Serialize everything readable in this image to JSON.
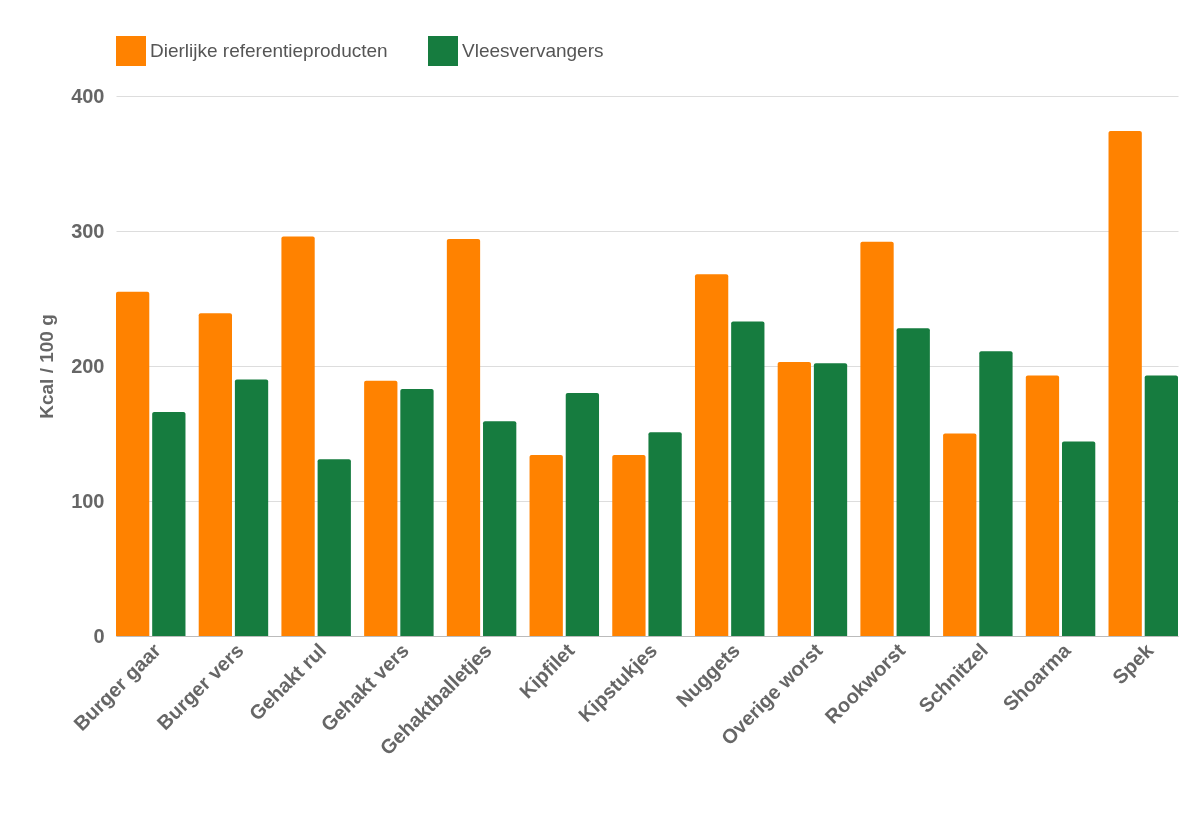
{
  "chart_data": {
    "type": "bar",
    "ylabel": "Kcal / 100 g",
    "categories": [
      "Burger gaar",
      "Burger vers",
      "Gehakt rul",
      "Gehakt vers",
      "Gehaktballetjes",
      "Kipfilet",
      "Kipstukjes",
      "Nuggets",
      "Overige worst",
      "Rookworst",
      "Schnitzel",
      "Shoarma",
      "Spek"
    ],
    "series": [
      {
        "name": "Dierlijke referentieproducten",
        "color": "#ff8200",
        "values": [
          255,
          239,
          296,
          189,
          294,
          134,
          134,
          268,
          203,
          292,
          150,
          193,
          374
        ]
      },
      {
        "name": "Vleesvervangers",
        "color": "#167c3f",
        "values": [
          166,
          190,
          131,
          183,
          159,
          180,
          151,
          233,
          202,
          228,
          211,
          144,
          193
        ]
      }
    ],
    "ylim": [
      0,
      400
    ],
    "yticks": [
      0,
      100,
      200,
      300,
      400
    ],
    "grid": "y",
    "legend": "top"
  }
}
